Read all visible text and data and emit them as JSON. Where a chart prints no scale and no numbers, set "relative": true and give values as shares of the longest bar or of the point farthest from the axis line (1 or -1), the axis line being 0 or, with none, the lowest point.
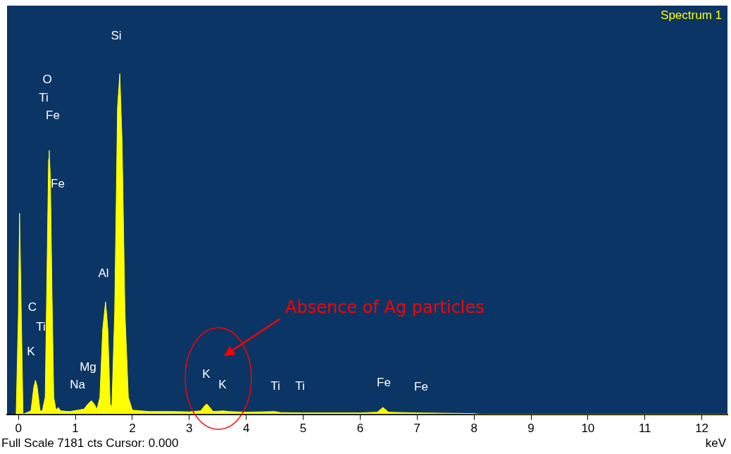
{
  "chart_data": {
    "type": "area",
    "relative": true,
    "xlabel": "keV",
    "color": "#ffff00",
    "grid": false,
    "xlim": [
      -0.2,
      12.45
    ],
    "xticks": [
      0,
      1,
      2,
      3,
      4,
      5,
      6,
      7,
      8,
      9,
      10,
      11,
      12
    ],
    "x": [
      -0.04,
      0.0,
      0.02,
      0.05,
      0.08,
      0.15,
      0.22,
      0.27,
      0.3,
      0.33,
      0.38,
      0.42,
      0.47,
      0.5,
      0.53,
      0.54,
      0.56,
      0.59,
      0.62,
      0.66,
      0.7,
      0.74,
      0.9,
      1.04,
      1.15,
      1.22,
      1.28,
      1.33,
      1.38,
      1.43,
      1.48,
      1.53,
      1.57,
      1.61,
      1.64,
      1.69,
      1.74,
      1.78,
      1.82,
      1.87,
      1.93,
      2.0,
      2.3,
      2.7,
      3.0,
      3.2,
      3.27,
      3.31,
      3.36,
      3.42,
      3.59,
      3.7,
      4.0,
      4.5,
      4.6,
      5.0,
      6.0,
      6.3,
      6.4,
      6.5,
      7.0,
      8.0,
      8.1,
      12.45
    ],
    "values": [
      0,
      0.3,
      0.59,
      0.3,
      0,
      0.005,
      0.01,
      0.08,
      0.1,
      0.08,
      0.01,
      0.01,
      0.05,
      0.4,
      0.75,
      0.775,
      0.7,
      0.35,
      0.05,
      0.012,
      0.02,
      0.01,
      0.008,
      0.012,
      0.015,
      0.03,
      0.04,
      0.03,
      0.015,
      0.05,
      0.25,
      0.33,
      0.25,
      0.03,
      0.02,
      0.3,
      0.9,
      1,
      0.8,
      0.3,
      0.05,
      0.012,
      0.008,
      0.008,
      0.007,
      0.01,
      0.025,
      0.03,
      0.02,
      0.008,
      0.01,
      0.008,
      0.006,
      0.008,
      0.005,
      0.004,
      0.004,
      0.006,
      0.02,
      0.006,
      0.004,
      0.002,
      0,
      0
    ],
    "annotations": [
      "Spectrum 1",
      "Full Scale 7181 cts Cursor: 0.000",
      "Absence of Ag particles",
      "Si",
      "O",
      "Ti",
      "Fe",
      "Fe",
      "Al",
      "C",
      "Ti",
      "K",
      "Mg",
      "Na",
      "K",
      "K",
      "Ti",
      "Ti",
      "Fe",
      "Fe"
    ]
  }
}
